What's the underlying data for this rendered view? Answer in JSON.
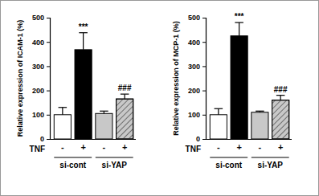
{
  "chart_data": [
    {
      "type": "bar",
      "y_label": "Relative expression of ICAM-1 (%)",
      "x_label": "TNF",
      "categories": [
        "-",
        "+",
        "-",
        "+"
      ],
      "group_labels": [
        "si-cont",
        "si-YAP"
      ],
      "values": [
        100,
        368,
        105,
        165
      ],
      "errors": [
        30,
        70,
        10,
        20
      ],
      "value_annotations": [
        null,
        "***",
        null,
        "###"
      ],
      "colors": [
        "#ffffff",
        "#000000",
        "#c8c8c8",
        "#c8c8c8"
      ],
      "ylim": [
        0,
        500
      ],
      "yticks": [
        0,
        100,
        200,
        300,
        400,
        500
      ]
    },
    {
      "type": "bar",
      "y_label": "Relative expression of MCP-1 (%)",
      "x_label": "TNF",
      "categories": [
        "-",
        "+",
        "-",
        "+"
      ],
      "group_labels": [
        "si-cont",
        "si-YAP"
      ],
      "values": [
        100,
        425,
        110,
        160
      ],
      "errors": [
        25,
        55,
        5,
        20
      ],
      "value_annotations": [
        null,
        "***",
        null,
        "###"
      ],
      "colors": [
        "#ffffff",
        "#000000",
        "#c8c8c8",
        "#c8c8c8"
      ],
      "ylim": [
        0,
        500
      ],
      "yticks": [
        0,
        100,
        200,
        300,
        400,
        500
      ]
    }
  ]
}
